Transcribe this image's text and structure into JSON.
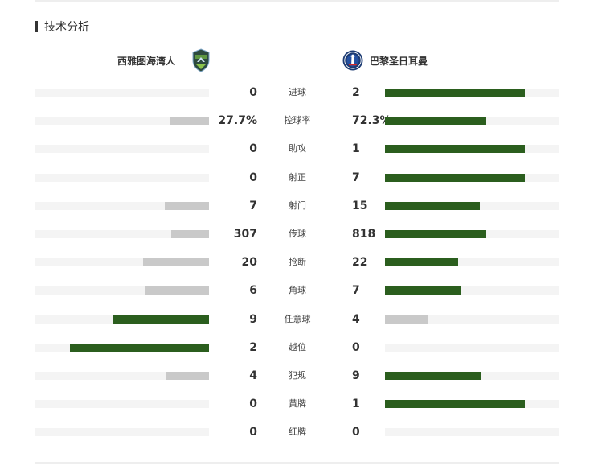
{
  "section": {
    "title": "技术分析"
  },
  "teams": {
    "home": {
      "name": "西雅图海湾人",
      "logo_icon": "seattle-sounders-crest"
    },
    "away": {
      "name": "巴黎圣日耳曼",
      "logo_icon": "psg-crest"
    }
  },
  "colors": {
    "leader": "#2b5e1e",
    "trailer": "#c9c9c9",
    "track": "#f4f4f4"
  },
  "stats": [
    {
      "label": "进球",
      "home": "0",
      "away": "2",
      "home_share": 0.0,
      "away_share": 0.8,
      "leader": "away"
    },
    {
      "label": "控球率",
      "home": "27.7%",
      "away": "72.3%",
      "home_share": 0.22,
      "away_share": 0.58,
      "leader": "away"
    },
    {
      "label": "助攻",
      "home": "0",
      "away": "1",
      "home_share": 0.0,
      "away_share": 0.8,
      "leader": "away"
    },
    {
      "label": "射正",
      "home": "0",
      "away": "7",
      "home_share": 0.0,
      "away_share": 0.8,
      "leader": "away"
    },
    {
      "label": "射门",
      "home": "7",
      "away": "15",
      "home_share": 0.255,
      "away_share": 0.545,
      "leader": "away"
    },
    {
      "label": "传球",
      "home": "307",
      "away": "818",
      "home_share": 0.218,
      "away_share": 0.582,
      "leader": "away"
    },
    {
      "label": "抢断",
      "home": "20",
      "away": "22",
      "home_share": 0.381,
      "away_share": 0.419,
      "leader": "away"
    },
    {
      "label": "角球",
      "home": "6",
      "away": "7",
      "home_share": 0.369,
      "away_share": 0.431,
      "leader": "away"
    },
    {
      "label": "任意球",
      "home": "9",
      "away": "4",
      "home_share": 0.554,
      "away_share": 0.246,
      "leader": "home"
    },
    {
      "label": "越位",
      "home": "2",
      "away": "0",
      "home_share": 0.8,
      "away_share": 0.0,
      "leader": "home"
    },
    {
      "label": "犯规",
      "home": "4",
      "away": "9",
      "home_share": 0.246,
      "away_share": 0.554,
      "leader": "away"
    },
    {
      "label": "黄牌",
      "home": "0",
      "away": "1",
      "home_share": 0.0,
      "away_share": 0.8,
      "leader": "away"
    },
    {
      "label": "红牌",
      "home": "0",
      "away": "0",
      "home_share": 0.0,
      "away_share": 0.0,
      "leader": "none"
    }
  ]
}
